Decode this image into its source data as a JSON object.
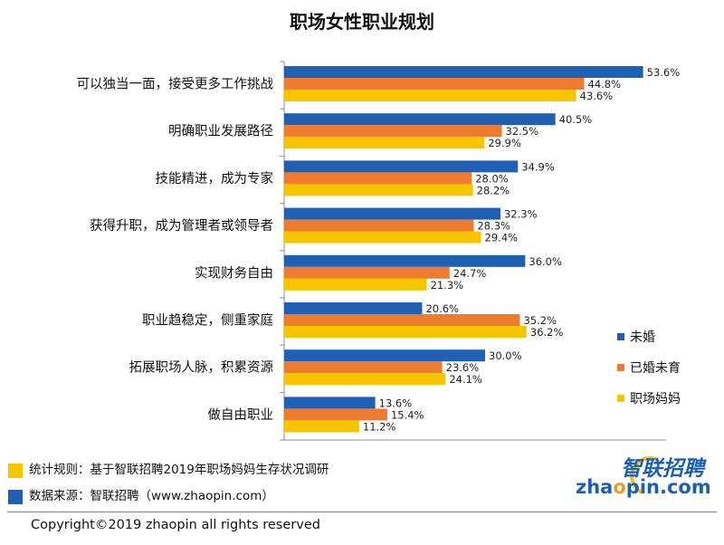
{
  "chart_data": {
    "type": "bar",
    "orientation": "horizontal",
    "title": "职场女性职业规划",
    "categories": [
      "可以独当一面，接受更多工作挑战",
      "明确职业发展路径",
      "技能精进，成为专家",
      "获得升职，成为管理者或领导者",
      "实现财务自由",
      "职业趋稳定，侧重家庭",
      "拓展职场人脉，积累资源",
      "做自由职业"
    ],
    "series": [
      {
        "name": "未婚",
        "color": "#1f5fb4",
        "values": [
          53.6,
          40.5,
          34.9,
          32.3,
          36.0,
          20.6,
          30.0,
          13.6
        ],
        "labels": [
          "53.6%",
          "40.5%",
          "34.9%",
          "32.3%",
          "36.0%",
          "20.6%",
          "30.0%",
          "13.6%"
        ]
      },
      {
        "name": "已婚未育",
        "color": "#ee7b30",
        "values": [
          44.8,
          32.5,
          28.0,
          28.3,
          24.7,
          35.2,
          23.6,
          15.4
        ],
        "labels": [
          "44.8%",
          "32.5%",
          "28.0%",
          "28.3%",
          "24.7%",
          "35.2%",
          "23.6%",
          "15.4%"
        ]
      },
      {
        "name": "职场妈妈",
        "color": "#f7c500",
        "values": [
          43.6,
          29.9,
          28.2,
          29.4,
          21.3,
          36.2,
          24.1,
          11.2
        ],
        "labels": [
          "43.6%",
          "29.9%",
          "28.2%",
          "29.4%",
          "21.3%",
          "36.2%",
          "24.1%",
          "11.2%"
        ]
      }
    ],
    "xlim": [
      0,
      60
    ],
    "grid": false,
    "legend": "right"
  },
  "footnotes": [
    {
      "icon": "yellow-square-icon",
      "color": "#f7c500",
      "text": "统计规则：基于智联招聘2019年职场妈妈生存状况调研"
    },
    {
      "icon": "blue-square-icon",
      "color": "#1f5fb4",
      "text": "数据来源：智联招聘（www.zhaopin.com）"
    }
  ],
  "logo": {
    "cn": "智联招聘",
    "en_prefix": "zha",
    "en_o": "o",
    "en_suffix": "pin.com"
  },
  "copyright": "Copyright©2019 zhaopin all rights reserved"
}
